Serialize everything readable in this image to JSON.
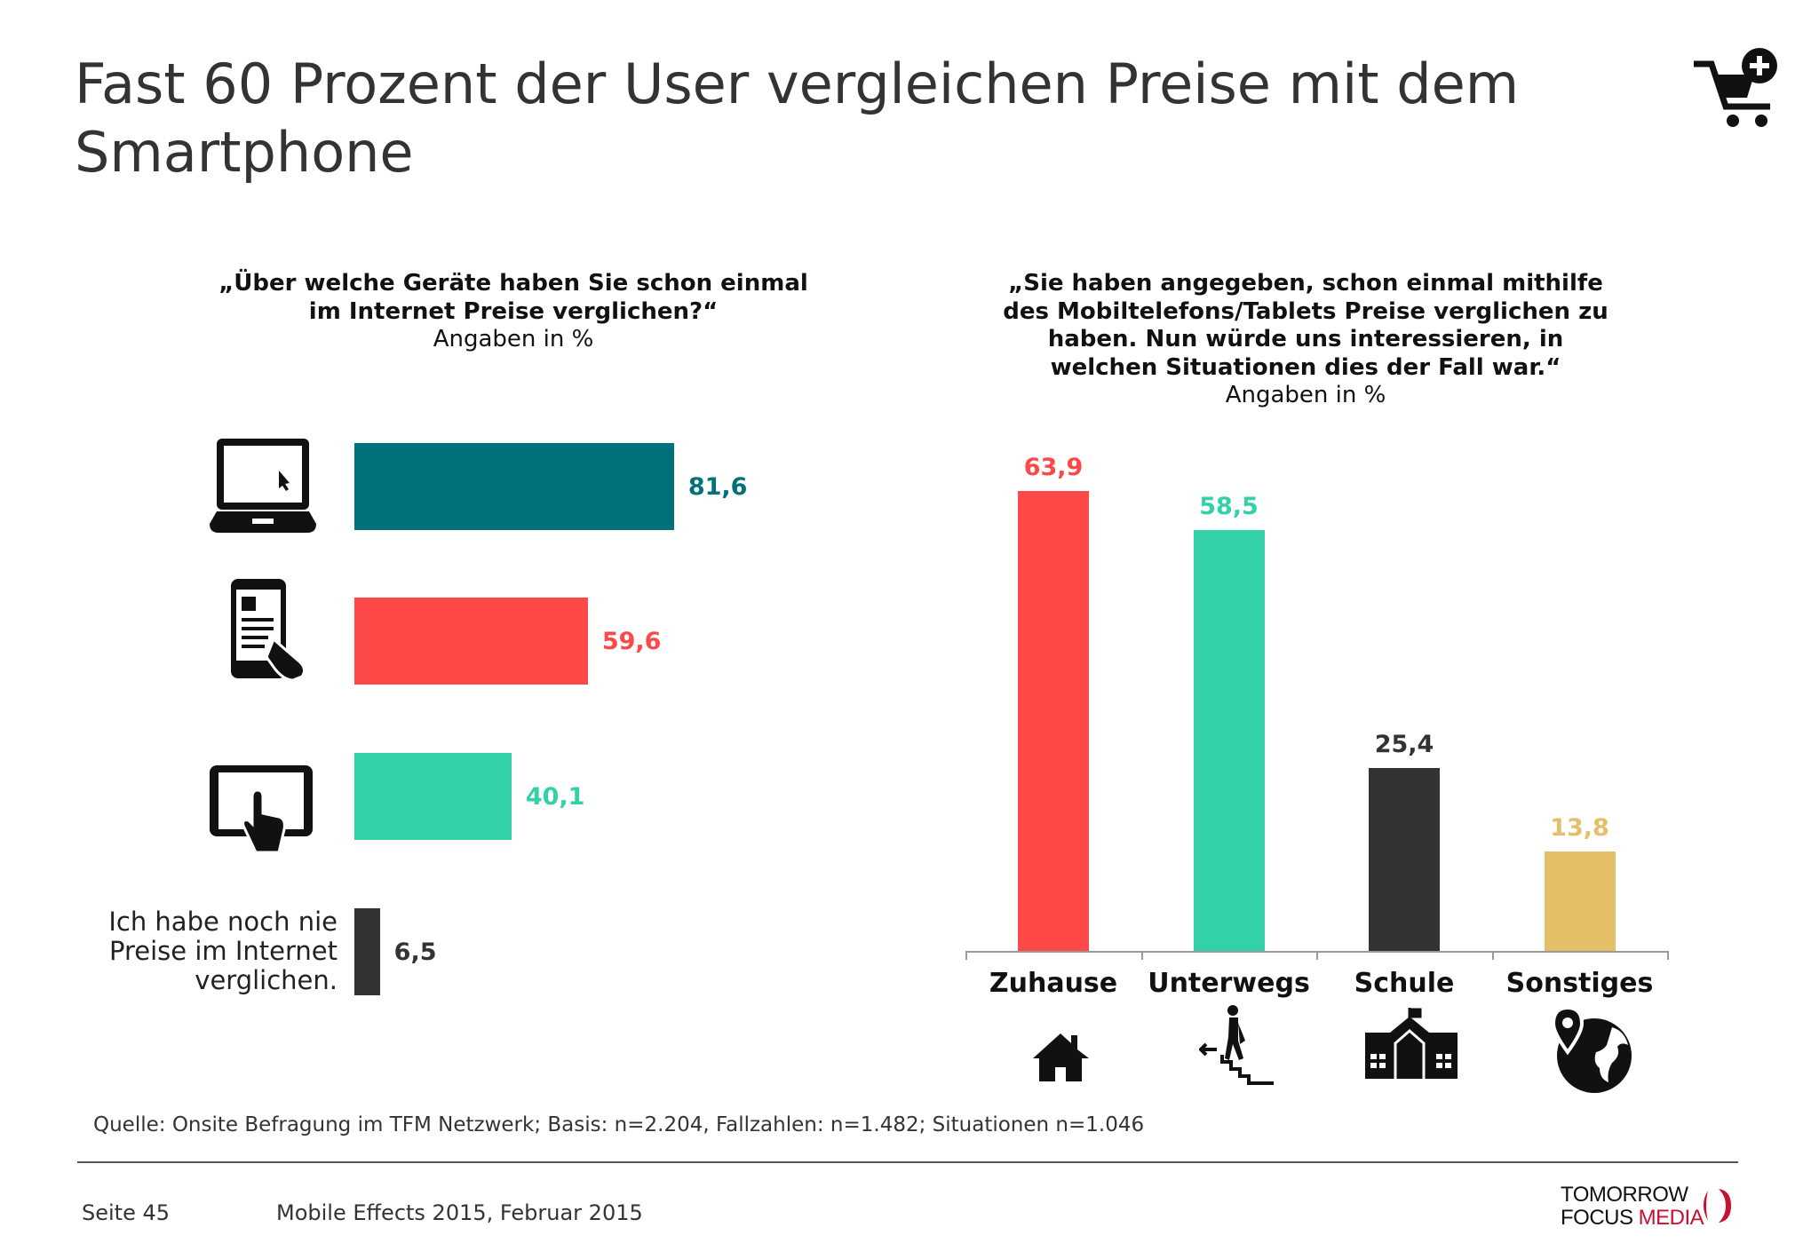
{
  "title": "Fast 60 Prozent der User vergleichen Preise mit dem Smartphone",
  "header_icon": "shopping-cart-plus-icon",
  "chart_data": [
    {
      "type": "bar",
      "orientation": "horizontal",
      "question": [
        "„Über welche Geräte haben Sie schon einmal",
        "im Internet Preise verglichen?“"
      ],
      "unit_note": "Angaben in %",
      "categories": [
        "Laptop",
        "Smartphone",
        "Tablet",
        "Ich habe noch nie Preise im Internet verglichen."
      ],
      "category_icons": [
        "laptop-icon",
        "smartphone-icon",
        "tablet-icon",
        null
      ],
      "values": [
        81.6,
        59.6,
        40.1,
        6.5
      ],
      "value_labels": [
        "81,6",
        "59,6",
        "40,1",
        "6,5"
      ],
      "colors": [
        "#00707a",
        "#ff4848",
        "#33d1a7",
        "#333333"
      ],
      "text_label": [
        "Ich habe noch nie",
        "Preise im Internet",
        "verglichen."
      ]
    },
    {
      "type": "bar",
      "orientation": "vertical",
      "question": [
        "„Sie haben angegeben, schon einmal mithilfe",
        "des Mobiltelefons/Tablets Preise verglichen zu",
        "haben. Nun würde uns interessieren, in",
        "welchen Situationen dies der Fall war.“"
      ],
      "unit_note": "Angaben in %",
      "categories": [
        "Zuhause",
        "Unterwegs",
        "Schule",
        "Sonstiges"
      ],
      "category_icons": [
        "house-icon",
        "walking-stairs-icon",
        "school-icon",
        "globe-pin-icon"
      ],
      "values": [
        63.9,
        58.5,
        25.4,
        13.8
      ],
      "value_labels": [
        "63,9",
        "58,5",
        "25,4",
        "13,8"
      ],
      "colors": [
        "#ff4848",
        "#33d1a7",
        "#333333",
        "#e5bf68"
      ]
    }
  ],
  "source": "Quelle: Onsite Befragung im TFM Netzwerk; Basis: n=2.204, Fallzahlen: n=1.482; Situationen n=1.046",
  "footer": {
    "page": "Seite 45",
    "publication": "Mobile Effects 2015, Februar 2015"
  },
  "logo": {
    "line1": "TOMORROW",
    "line2a": "FOCUS",
    "line2b": "MEDIA",
    "color": "#c8102e"
  }
}
